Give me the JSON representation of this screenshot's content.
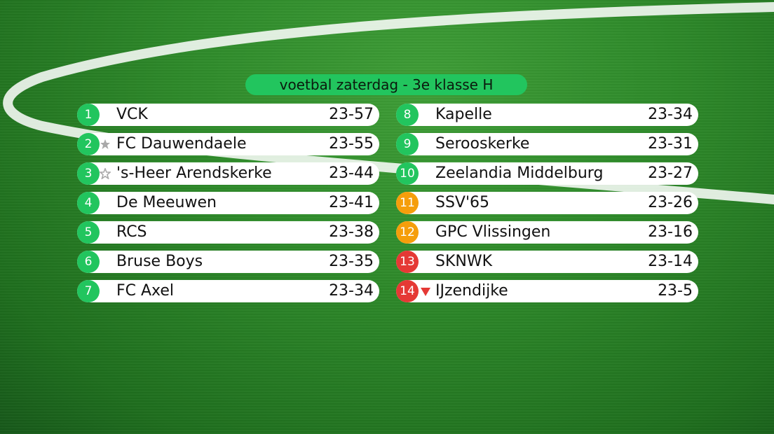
{
  "title": "voetbal zaterdag - 3e klasse H",
  "colors": {
    "promotion": "#22c55e",
    "playoff": "#f59e0b",
    "relegation": "#e53935",
    "star": "#a9a9a9",
    "row_bg": "#ffffff"
  },
  "standings": [
    {
      "rank": "1",
      "team": "VCK",
      "score": "23-57",
      "status": "promotion",
      "marker": "none"
    },
    {
      "rank": "2",
      "team": "FC Dauwendaele",
      "score": "23-55",
      "status": "promotion",
      "marker": "star"
    },
    {
      "rank": "3",
      "team": "'s-Heer Arendskerke",
      "score": "23-44",
      "status": "promotion",
      "marker": "star-outline"
    },
    {
      "rank": "4",
      "team": "De Meeuwen",
      "score": "23-41",
      "status": "promotion",
      "marker": "none"
    },
    {
      "rank": "5",
      "team": "RCS",
      "score": "23-38",
      "status": "promotion",
      "marker": "none"
    },
    {
      "rank": "6",
      "team": "Bruse Boys",
      "score": "23-35",
      "status": "promotion",
      "marker": "none"
    },
    {
      "rank": "7",
      "team": "FC Axel",
      "score": "23-34",
      "status": "promotion",
      "marker": "none"
    },
    {
      "rank": "8",
      "team": "Kapelle",
      "score": "23-34",
      "status": "promotion",
      "marker": "none"
    },
    {
      "rank": "9",
      "team": "Serooskerke",
      "score": "23-31",
      "status": "promotion",
      "marker": "none"
    },
    {
      "rank": "10",
      "team": "Zeelandia Middelburg",
      "score": "23-27",
      "status": "promotion",
      "marker": "none"
    },
    {
      "rank": "11",
      "team": "SSV'65",
      "score": "23-26",
      "status": "playoff",
      "marker": "none"
    },
    {
      "rank": "12",
      "team": "GPC Vlissingen",
      "score": "23-16",
      "status": "playoff",
      "marker": "none"
    },
    {
      "rank": "13",
      "team": "SKNWK",
      "score": "23-14",
      "status": "relegation",
      "marker": "none"
    },
    {
      "rank": "14",
      "team": "IJzendijke",
      "score": "23-5",
      "status": "relegation",
      "marker": "down-triangle"
    }
  ]
}
